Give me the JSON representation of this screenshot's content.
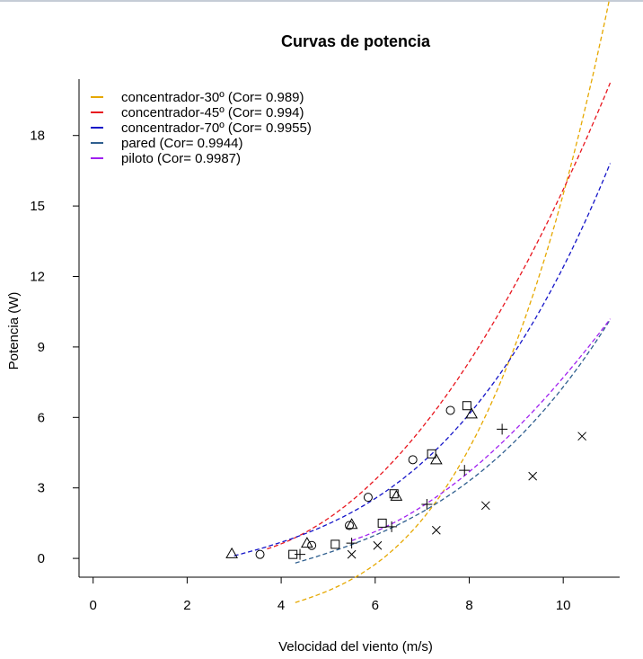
{
  "chart_data": {
    "type": "scatter",
    "title": "Curvas de potencia",
    "xlabel": "Velocidad del viento (m/s)",
    "ylabel": "Potencia (W)",
    "xlim": [
      -0.3,
      11.2
    ],
    "ylim": [
      -0.8,
      20.4
    ],
    "xticks": [
      "0",
      "2",
      "4",
      "6",
      "8",
      "10"
    ],
    "yticks": [
      "0",
      "3",
      "6",
      "9",
      "12",
      "15",
      "18"
    ],
    "legend_position": "top-left",
    "series": [
      {
        "name": "concentrador-30º (Cor= 0.989)",
        "color": "#e6a800",
        "marker": "square",
        "curve": {
          "x_start": 4.3,
          "x_end": 11.0,
          "coeffs": [
            -7.2,
            2.91,
            -0.634,
            0.057
          ]
        },
        "points": [
          {
            "x": 4.25,
            "y": 0.17
          },
          {
            "x": 5.15,
            "y": 0.6
          },
          {
            "x": 6.15,
            "y": 1.5
          },
          {
            "x": 6.4,
            "y": 2.75
          },
          {
            "x": 7.2,
            "y": 4.45
          },
          {
            "x": 7.95,
            "y": 6.5
          }
        ]
      },
      {
        "name": "concentrador-45º (Cor= 0.994)",
        "color": "#e8171f",
        "marker": "circle",
        "curve": {
          "x_start": 3.7,
          "x_end": 11.0,
          "coeffs": [
            1.9,
            -1.43,
            0.275,
            0.0006
          ]
        },
        "points": [
          {
            "x": 3.55,
            "y": 0.17
          },
          {
            "x": 4.65,
            "y": 0.55
          },
          {
            "x": 5.45,
            "y": 1.4
          },
          {
            "x": 5.85,
            "y": 2.6
          },
          {
            "x": 6.8,
            "y": 4.2
          },
          {
            "x": 7.6,
            "y": 6.3
          }
        ]
      },
      {
        "name": "concentrador-70º (Cor= 0.9955)",
        "color": "#1515c8",
        "marker": "triangle",
        "curve": {
          "x_start": 3.0,
          "x_end": 11.0,
          "coeffs": [
            -1.6,
            0.8,
            -0.135,
            0.0195
          ]
        },
        "points": [
          {
            "x": 2.95,
            "y": 0.2
          },
          {
            "x": 4.55,
            "y": 0.65
          },
          {
            "x": 5.5,
            "y": 1.45
          },
          {
            "x": 6.45,
            "y": 2.65
          },
          {
            "x": 7.3,
            "y": 4.2
          },
          {
            "x": 8.05,
            "y": 6.15
          }
        ]
      },
      {
        "name": "pared (Cor= 0.9944)",
        "color": "#2f5f8f",
        "marker": "plus",
        "curve": {
          "x_start": 4.3,
          "x_end": 11.0,
          "coeffs": [
            -3.2,
            1.1,
            -0.16,
            0.0155
          ]
        },
        "points": [
          {
            "x": 4.4,
            "y": 0.17
          },
          {
            "x": 5.5,
            "y": 0.65
          },
          {
            "x": 6.35,
            "y": 1.35
          },
          {
            "x": 7.1,
            "y": 2.3
          },
          {
            "x": 7.9,
            "y": 3.75
          },
          {
            "x": 8.7,
            "y": 5.5
          }
        ]
      },
      {
        "name": "piloto (Cor= 0.9987)",
        "color": "#a020f0",
        "marker": "cross",
        "curve": {
          "x_start": 5.5,
          "x_end": 11.0,
          "coeffs": [
            4.5,
            -2.15,
            0.292,
            -0.0045
          ]
        },
        "points": [
          {
            "x": 5.5,
            "y": 0.17
          },
          {
            "x": 6.05,
            "y": 0.55
          },
          {
            "x": 7.3,
            "y": 1.2
          },
          {
            "x": 8.35,
            "y": 2.25
          },
          {
            "x": 9.35,
            "y": 3.5
          },
          {
            "x": 10.4,
            "y": 5.2
          }
        ]
      }
    ]
  }
}
